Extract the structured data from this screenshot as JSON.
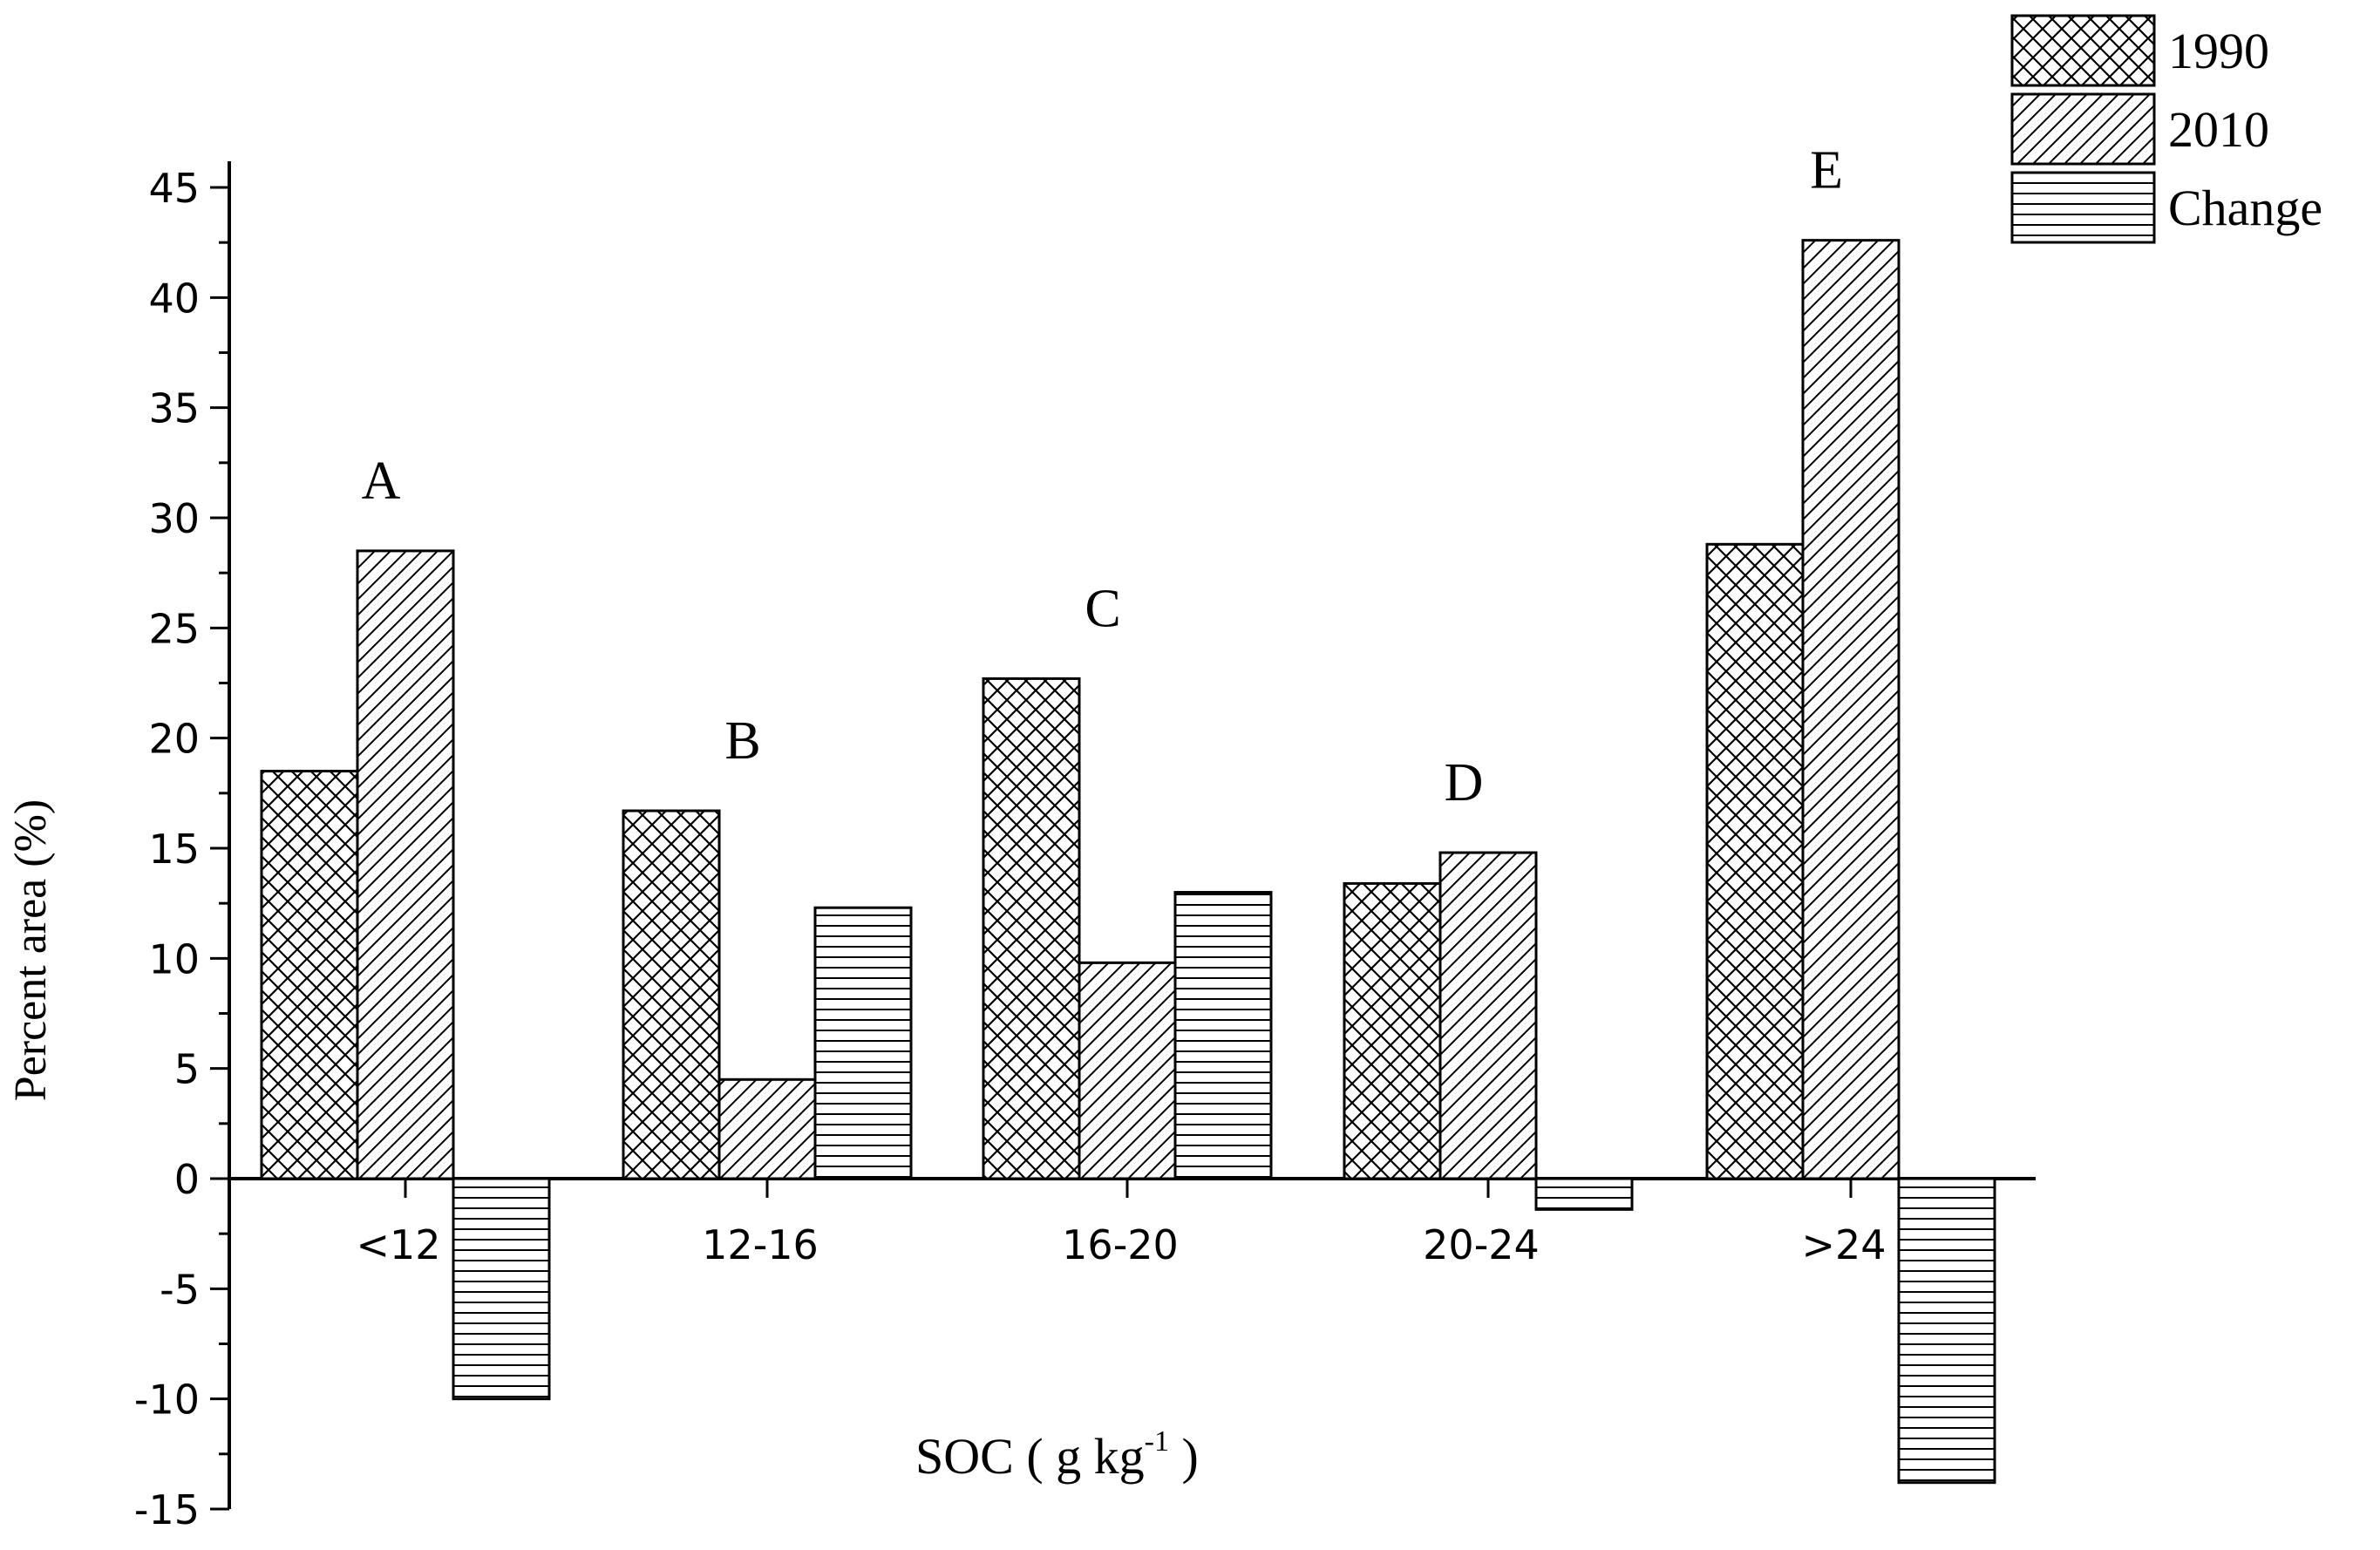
{
  "chart_data": {
    "type": "bar",
    "xlabel": "SOC ( g kg",
    "xlabel_sup": "-1",
    "xlabel_close": " )",
    "ylabel": "Percent area (%)",
    "categories": [
      "<12",
      "12-16",
      "16-20",
      "20-24",
      ">24"
    ],
    "group_letters": [
      "A",
      "B",
      "C",
      "D",
      "E"
    ],
    "series": [
      {
        "name": "1990",
        "pattern": "crosshatch",
        "values": [
          18.5,
          16.7,
          22.7,
          13.4,
          28.8
        ]
      },
      {
        "name": "2010",
        "pattern": "diagonal",
        "values": [
          28.5,
          4.5,
          9.8,
          14.8,
          42.6
        ]
      },
      {
        "name": "Change",
        "pattern": "horizontal",
        "values": [
          -10.0,
          12.3,
          13.0,
          -1.4,
          -13.8
        ]
      }
    ],
    "ylim": [
      -15,
      45
    ],
    "yticks": [
      -15,
      -10,
      -5,
      0,
      5,
      10,
      15,
      20,
      25,
      30,
      35,
      40,
      45
    ],
    "legend_position": "top-right",
    "grid": false,
    "colors": {
      "stroke": "#000000",
      "fill": "#ffffff"
    }
  }
}
